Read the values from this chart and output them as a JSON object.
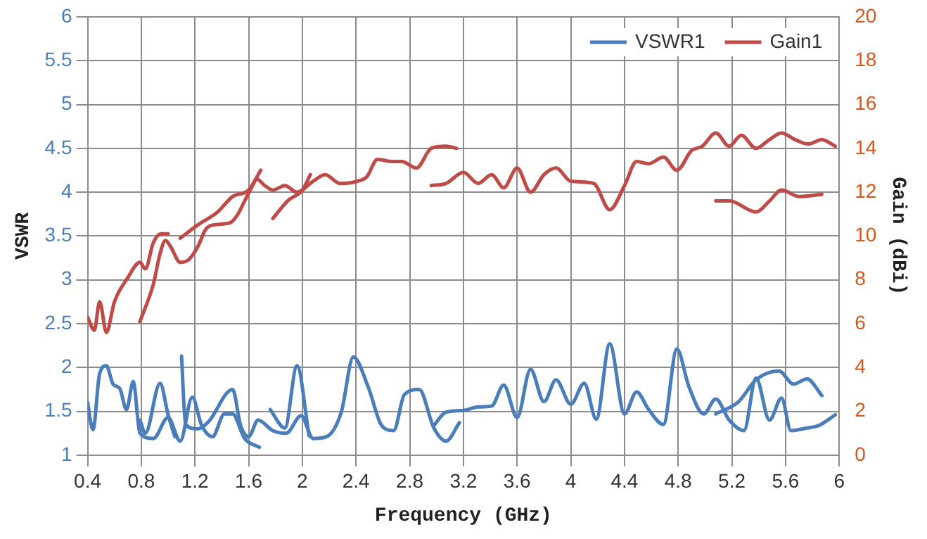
{
  "chart_data": {
    "type": "line",
    "xlabel": "Frequency (GHz)",
    "ylabel": "VSWR",
    "y2label": "Gain (dBi)",
    "xlim": [
      0.4,
      6
    ],
    "xticks": [
      0.4,
      0.8,
      1.2,
      1.6,
      2,
      2.4,
      2.8,
      3.2,
      3.6,
      4,
      4.4,
      4.8,
      5.2,
      5.6,
      6
    ],
    "ylim": [
      1,
      6
    ],
    "yticks": [
      1,
      1.5,
      2,
      2.5,
      3,
      3.5,
      4,
      4.5,
      5,
      5.5,
      6
    ],
    "y2lim": [
      0,
      20
    ],
    "y2ticks": [
      0,
      2,
      4,
      6,
      8,
      10,
      12,
      14,
      16,
      18,
      20
    ],
    "grid": true,
    "legend": "top right",
    "series": [
      {
        "name": "VSWR1",
        "color": "#4a7ebb",
        "axis": "y",
        "x": [
          0.4,
          0.44,
          0.49,
          0.54,
          0.59,
          0.64,
          0.69,
          0.74,
          0.79,
          0.89,
          1.0,
          1.09,
          1.18,
          1.25,
          1.33,
          1.42,
          1.48,
          1.57,
          1.68
        ],
        "values": [
          1.6,
          1.29,
          1.93,
          2.02,
          1.81,
          1.76,
          1.52,
          1.84,
          1.25,
          1.19,
          1.43,
          1.16,
          1.66,
          1.34,
          1.21,
          1.47,
          1.47,
          1.19,
          1.09
        ]
      },
      {
        "color": "#4a7ebb",
        "axis": "y",
        "x": [
          0.79,
          0.83,
          0.94,
          1.0,
          1.05
        ],
        "values": [
          1.4,
          1.25,
          1.82,
          1.46,
          1.21
        ]
      },
      {
        "color": "#4a7ebb",
        "axis": "y",
        "x": [
          1.1,
          1.13,
          1.22,
          1.3,
          1.48,
          1.54,
          1.6,
          1.67,
          1.78,
          1.88,
          1.99,
          2.08,
          2.18,
          2.29,
          2.38,
          2.49,
          2.59,
          2.68,
          2.76,
          2.87,
          2.98,
          3.07,
          3.17
        ],
        "values": [
          2.13,
          1.35,
          1.3,
          1.38,
          1.75,
          1.34,
          1.21,
          1.4,
          1.28,
          1.25,
          1.45,
          1.19,
          1.21,
          1.49,
          2.12,
          1.78,
          1.34,
          1.28,
          1.69,
          1.75,
          1.31,
          1.16,
          1.37
        ]
      },
      {
        "color": "#4a7ebb",
        "axis": "y",
        "x": [
          1.76,
          1.87,
          1.96,
          2.05
        ],
        "values": [
          1.52,
          1.31,
          2.02,
          1.22
        ]
      },
      {
        "color": "#4a7ebb",
        "axis": "y",
        "x": [
          2.98,
          3.07,
          3.2,
          3.31,
          3.41,
          3.5,
          3.6,
          3.7,
          3.8,
          3.89,
          4.0,
          4.1,
          4.19,
          4.29,
          4.4,
          4.49,
          4.58,
          4.69,
          4.79,
          4.88,
          4.99,
          5.08,
          5.18,
          5.29,
          5.38,
          5.48,
          5.57,
          5.64,
          5.76,
          5.85,
          5.97
        ],
        "values": [
          1.34,
          1.49,
          1.51,
          1.55,
          1.56,
          1.8,
          1.43,
          1.98,
          1.61,
          1.86,
          1.58,
          1.82,
          1.41,
          2.27,
          1.47,
          1.72,
          1.52,
          1.35,
          2.21,
          1.78,
          1.47,
          1.64,
          1.4,
          1.28,
          1.88,
          1.4,
          1.65,
          1.28,
          1.31,
          1.34,
          1.46
        ]
      },
      {
        "color": "#4a7ebb",
        "axis": "y",
        "x": [
          5.08,
          5.25,
          5.38,
          5.55,
          5.66,
          5.76,
          5.87
        ],
        "values": [
          1.47,
          1.61,
          1.86,
          1.96,
          1.81,
          1.87,
          1.68
        ]
      },
      {
        "name": "Gain1",
        "color": "#be4b48",
        "axis": "y2",
        "x": [
          0.4,
          0.45,
          0.49,
          0.54,
          0.6,
          0.7,
          0.79,
          0.83,
          0.89,
          0.95,
          1.0
        ],
        "values": [
          6.3,
          5.7,
          7.0,
          5.6,
          7.0,
          8.1,
          8.8,
          8.5,
          9.7,
          10.1,
          10.1
        ]
      },
      {
        "color": "#be4b48",
        "axis": "y2",
        "x": [
          0.79,
          0.89,
          0.94,
          0.98,
          1.02,
          1.09,
          1.15,
          1.22,
          1.28,
          1.33,
          1.46,
          1.52,
          1.57,
          1.63,
          1.66,
          1.72,
          1.78,
          1.87,
          1.96,
          2.08,
          2.17,
          2.28,
          2.41,
          2.48,
          2.56,
          2.67,
          2.74,
          2.85,
          2.96,
          3.07,
          3.15
        ],
        "values": [
          6.1,
          7.8,
          9.2,
          9.8,
          9.5,
          8.8,
          8.9,
          9.5,
          10.3,
          10.5,
          10.6,
          11.0,
          11.6,
          12.3,
          12.6,
          12.3,
          12.1,
          12.3,
          12.0,
          12.5,
          12.8,
          12.4,
          12.5,
          12.7,
          13.5,
          13.4,
          13.4,
          13.1,
          14.0,
          14.1,
          14.0
        ]
      },
      {
        "color": "#be4b48",
        "axis": "y2",
        "x": [
          1.09,
          1.22,
          1.37,
          1.48,
          1.6,
          1.69
        ],
        "values": [
          9.9,
          10.5,
          11.1,
          11.8,
          12.1,
          13.0
        ]
      },
      {
        "color": "#be4b48",
        "axis": "y2",
        "x": [
          1.78,
          1.89,
          2.0,
          2.06
        ],
        "values": [
          10.8,
          11.6,
          12.1,
          12.8
        ]
      },
      {
        "color": "#be4b48",
        "axis": "y2",
        "x": [
          2.96,
          3.07,
          3.2,
          3.31,
          3.41,
          3.5,
          3.6,
          3.7,
          3.8,
          3.89,
          4.0,
          4.17,
          4.29,
          4.4,
          4.49,
          4.58,
          4.69,
          4.79,
          4.9,
          4.98,
          5.08,
          5.18,
          5.27,
          5.38,
          5.48,
          5.57,
          5.67,
          5.77,
          5.87,
          5.97
        ],
        "values": [
          12.3,
          12.4,
          12.9,
          12.4,
          12.8,
          12.2,
          13.1,
          12.0,
          12.8,
          13.1,
          12.5,
          12.4,
          11.2,
          12.3,
          13.4,
          13.3,
          13.6,
          13.0,
          13.9,
          14.1,
          14.7,
          14.1,
          14.6,
          14.0,
          14.4,
          14.7,
          14.4,
          14.2,
          14.4,
          14.1
        ]
      },
      {
        "color": "#be4b48",
        "axis": "y2",
        "x": [
          5.08,
          5.18,
          5.38,
          5.48,
          5.57,
          5.7,
          5.87
        ],
        "values": [
          11.6,
          11.6,
          11.1,
          11.6,
          12.1,
          11.8,
          11.9
        ]
      }
    ]
  }
}
